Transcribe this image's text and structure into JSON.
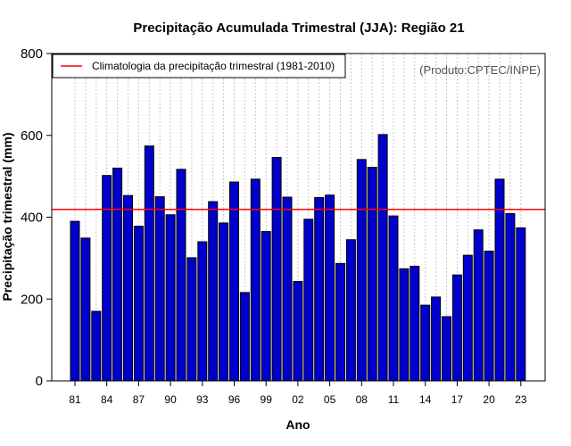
{
  "chart_data": {
    "type": "bar",
    "title": "Precipitação Acumulada Trimestral (JJA): Região 21",
    "xlabel": "Ano",
    "ylabel": "Precipitação trimestral (mm)",
    "ylim": [
      0,
      800
    ],
    "yticks": [
      0,
      200,
      400,
      600,
      800
    ],
    "grid": "vertical dotted",
    "credit": "(Produto:CPTEC/INPE)",
    "bar_color": "#0000cc",
    "categories": [
      1981,
      1982,
      1983,
      1984,
      1985,
      1986,
      1987,
      1988,
      1989,
      1990,
      1991,
      1992,
      1993,
      1994,
      1995,
      1996,
      1997,
      1998,
      1999,
      2000,
      2001,
      2002,
      2003,
      2004,
      2005,
      2006,
      2007,
      2008,
      2009,
      2010,
      2011,
      2012,
      2013,
      2014,
      2015,
      2016,
      2017,
      2018,
      2019,
      2020,
      2021,
      2022,
      2023
    ],
    "tick_labels": [
      "81",
      "84",
      "87",
      "90",
      "93",
      "96",
      "99",
      "02",
      "05",
      "08",
      "11",
      "14",
      "17",
      "20",
      "23"
    ],
    "tick_positions": [
      1981,
      1984,
      1987,
      1990,
      1993,
      1996,
      1999,
      2002,
      2005,
      2008,
      2011,
      2014,
      2017,
      2020,
      2023
    ],
    "values": [
      390,
      349,
      170,
      502,
      520,
      453,
      378,
      574,
      450,
      406,
      517,
      301,
      340,
      438,
      386,
      486,
      216,
      493,
      365,
      546,
      449,
      243,
      395,
      448,
      454,
      287,
      345,
      541,
      522,
      602,
      403,
      274,
      280,
      185,
      205,
      157,
      259,
      307,
      369,
      317,
      493,
      409,
      374
    ],
    "climatology": {
      "label": "Climatologia da precipitação trimestral (1981-2010)",
      "value": 419,
      "color": "#ff0000"
    },
    "legend_position": "top-left"
  }
}
